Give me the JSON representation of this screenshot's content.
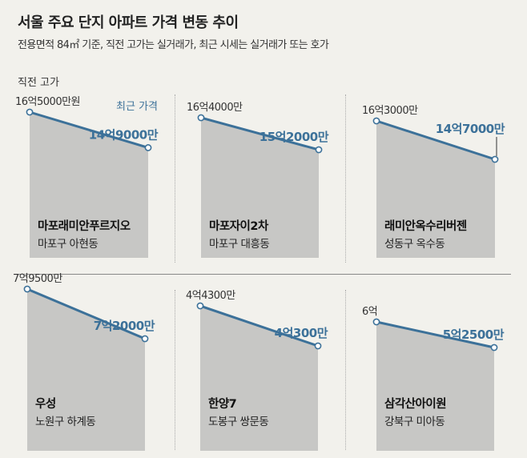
{
  "title": "서울 주요 단지 아파트 가격 변동 추이",
  "subtitle": "전용면적 84㎡ 기준, 직전 고가는 실거래가, 최근 시세는 실거래가 또는 호가",
  "legend": {
    "previous_high": "직전 고가",
    "recent_price": "최근 가격"
  },
  "colors": {
    "line": "#3c7199",
    "recent_label": "#3c7199",
    "area": "#c7c7c5",
    "background": "#f2f1ec"
  },
  "chart_data": {
    "type": "line",
    "unit": "만원",
    "x": [
      "직전 고가",
      "최근 가격"
    ],
    "series": [
      {
        "name": "마포래미안푸르지오",
        "district": "마포구 아현동",
        "values": [
          165000,
          149000
        ],
        "labels": [
          "16억5000만원",
          "14억9000만"
        ]
      },
      {
        "name": "마포자이2차",
        "district": "마포구 대흥동",
        "values": [
          164000,
          152000
        ],
        "labels": [
          "16억4000만",
          "15억2000만"
        ]
      },
      {
        "name": "래미안옥수리버젠",
        "district": "성동구 옥수동",
        "values": [
          163000,
          147000
        ],
        "labels": [
          "16억3000만",
          "14억7000만"
        ]
      },
      {
        "name": "우성",
        "district": "노원구 하계동",
        "values": [
          79500,
          72000
        ],
        "labels": [
          "7억9500만",
          "7억2000만"
        ]
      },
      {
        "name": "한양7",
        "district": "도봉구 쌍문동",
        "values": [
          44300,
          40300
        ],
        "labels": [
          "4억4300만",
          "4억300만"
        ]
      },
      {
        "name": "삼각산아이원",
        "district": "강북구 미아동",
        "values": [
          60000,
          52500
        ],
        "labels": [
          "6억",
          "5억2500만"
        ]
      }
    ]
  }
}
